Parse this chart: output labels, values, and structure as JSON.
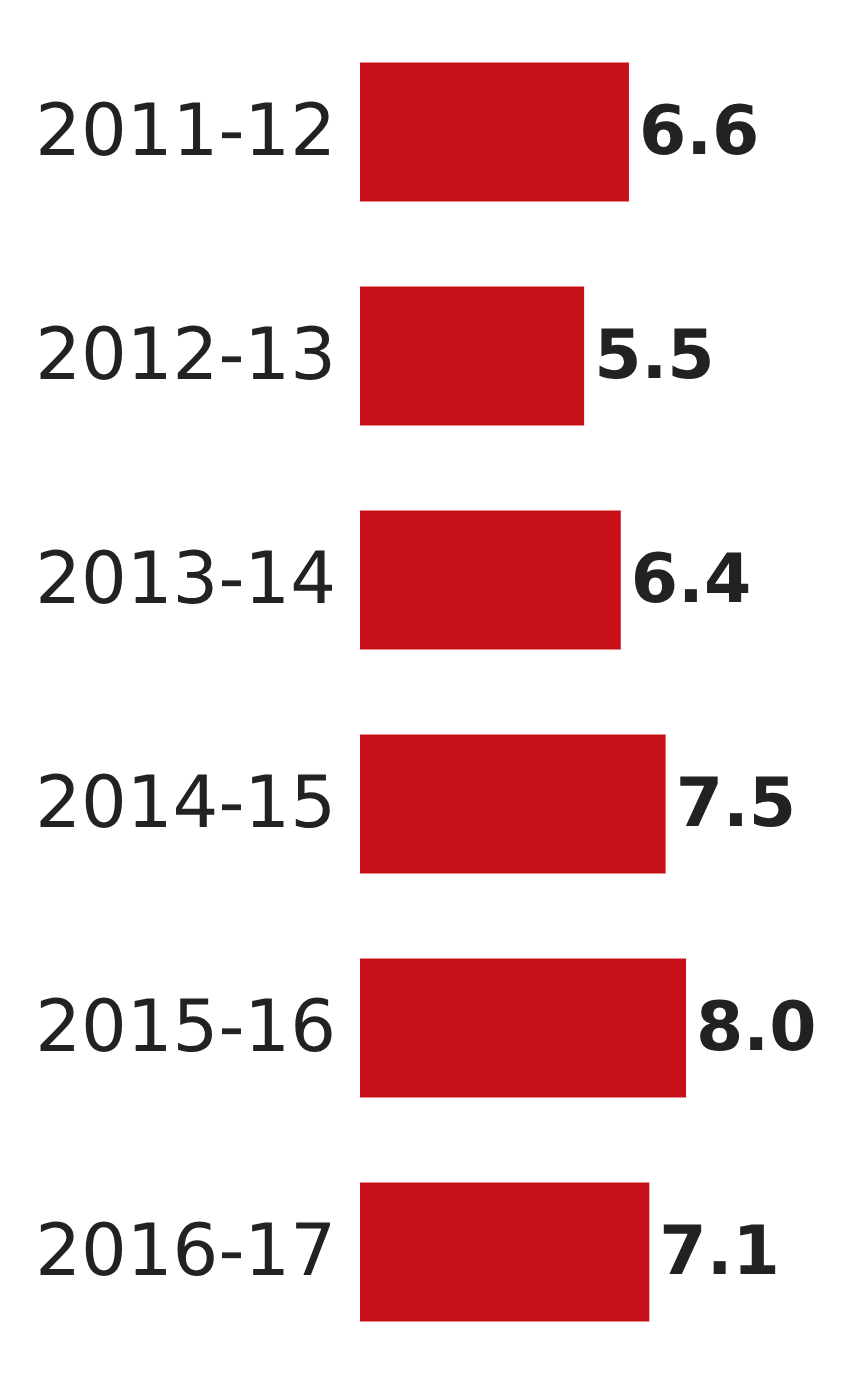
{
  "chart_data": {
    "type": "bar",
    "orientation": "horizontal",
    "categories": [
      "2011-12",
      "2012-13",
      "2013-14",
      "2014-15",
      "2015-16",
      "2016-17"
    ],
    "values": [
      6.6,
      5.5,
      6.4,
      7.5,
      8.0,
      7.1
    ],
    "value_labels": [
      "6.6",
      "5.5",
      "6.4",
      "7.5",
      "8.0",
      "7.1"
    ],
    "color": "#c8101a"
  }
}
